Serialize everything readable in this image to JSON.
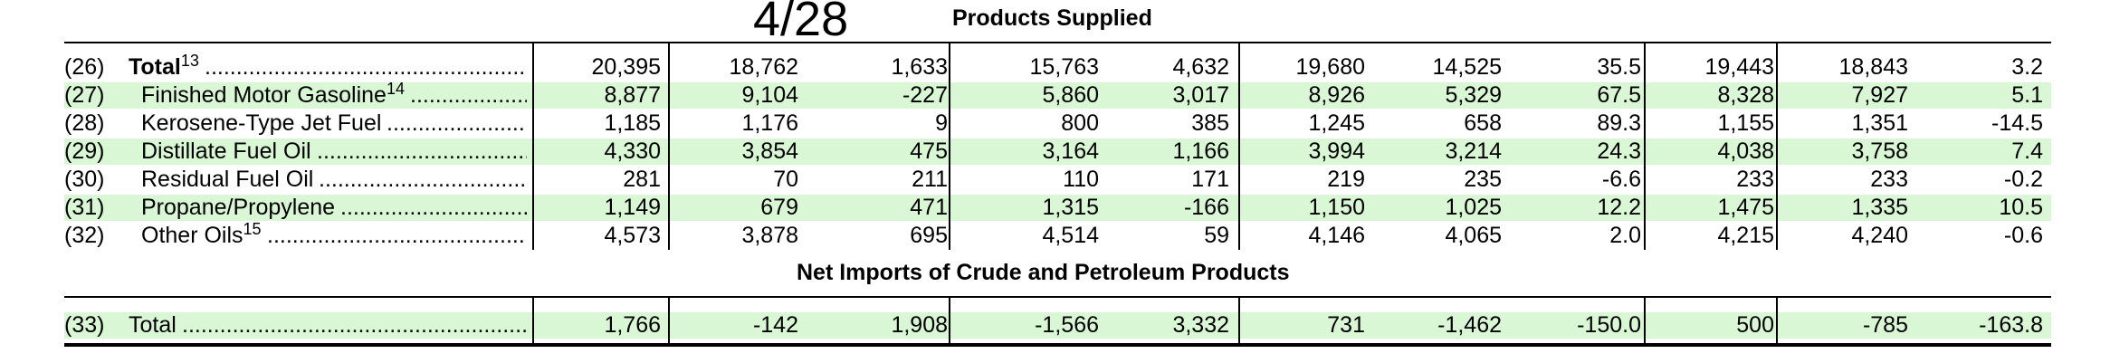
{
  "stamp": "4/28",
  "sections": {
    "supplied_title": "Products Supplied",
    "net_imports_title": "Net Imports of Crude and Petroleum Products"
  },
  "rows": [
    {
      "num": "(26)",
      "label": "Total",
      "sup": "13",
      "bold": true,
      "green": false,
      "values": [
        "20,395",
        "18,762",
        "1,633",
        "15,763",
        "4,632",
        "19,680",
        "14,525",
        "35.5",
        "19,443",
        "18,843",
        "3.2"
      ]
    },
    {
      "num": "(27)",
      "label": "Finished Motor Gasoline",
      "sup": "14",
      "bold": false,
      "green": true,
      "values": [
        "8,877",
        "9,104",
        "-227",
        "5,860",
        "3,017",
        "8,926",
        "5,329",
        "67.5",
        "8,328",
        "7,927",
        "5.1"
      ]
    },
    {
      "num": "(28)",
      "label": "Kerosene-Type Jet Fuel",
      "sup": "",
      "bold": false,
      "green": false,
      "values": [
        "1,185",
        "1,176",
        "9",
        "800",
        "385",
        "1,245",
        "658",
        "89.3",
        "1,155",
        "1,351",
        "-14.5"
      ]
    },
    {
      "num": "(29)",
      "label": "Distillate Fuel Oil",
      "sup": "",
      "bold": false,
      "green": true,
      "values": [
        "4,330",
        "3,854",
        "475",
        "3,164",
        "1,166",
        "3,994",
        "3,214",
        "24.3",
        "4,038",
        "3,758",
        "7.4"
      ]
    },
    {
      "num": "(30)",
      "label": "Residual Fuel Oil",
      "sup": "",
      "bold": false,
      "green": false,
      "values": [
        "281",
        "70",
        "211",
        "110",
        "171",
        "219",
        "235",
        "-6.6",
        "233",
        "233",
        "-0.2"
      ]
    },
    {
      "num": "(31)",
      "label": "Propane/Propylene",
      "sup": "",
      "bold": false,
      "green": true,
      "values": [
        "1,149",
        "679",
        "471",
        "1,315",
        "-166",
        "1,150",
        "1,025",
        "12.2",
        "1,475",
        "1,335",
        "10.5"
      ]
    },
    {
      "num": "(32)",
      "label": "Other Oils",
      "sup": "15",
      "bold": false,
      "green": false,
      "values": [
        "4,573",
        "3,878",
        "695",
        "4,514",
        "59",
        "4,146",
        "4,065",
        "2.0",
        "4,215",
        "4,240",
        "-0.6"
      ]
    }
  ],
  "net_imports_row": {
    "num": "(33)",
    "label": "Total",
    "green": true,
    "values": [
      "1,766",
      "-142",
      "1,908",
      "-1,566",
      "3,332",
      "731",
      "-1,462",
      "-150.0",
      "500",
      "-785",
      "-163.8"
    ]
  },
  "dot_leader": "................................................................................................"
}
